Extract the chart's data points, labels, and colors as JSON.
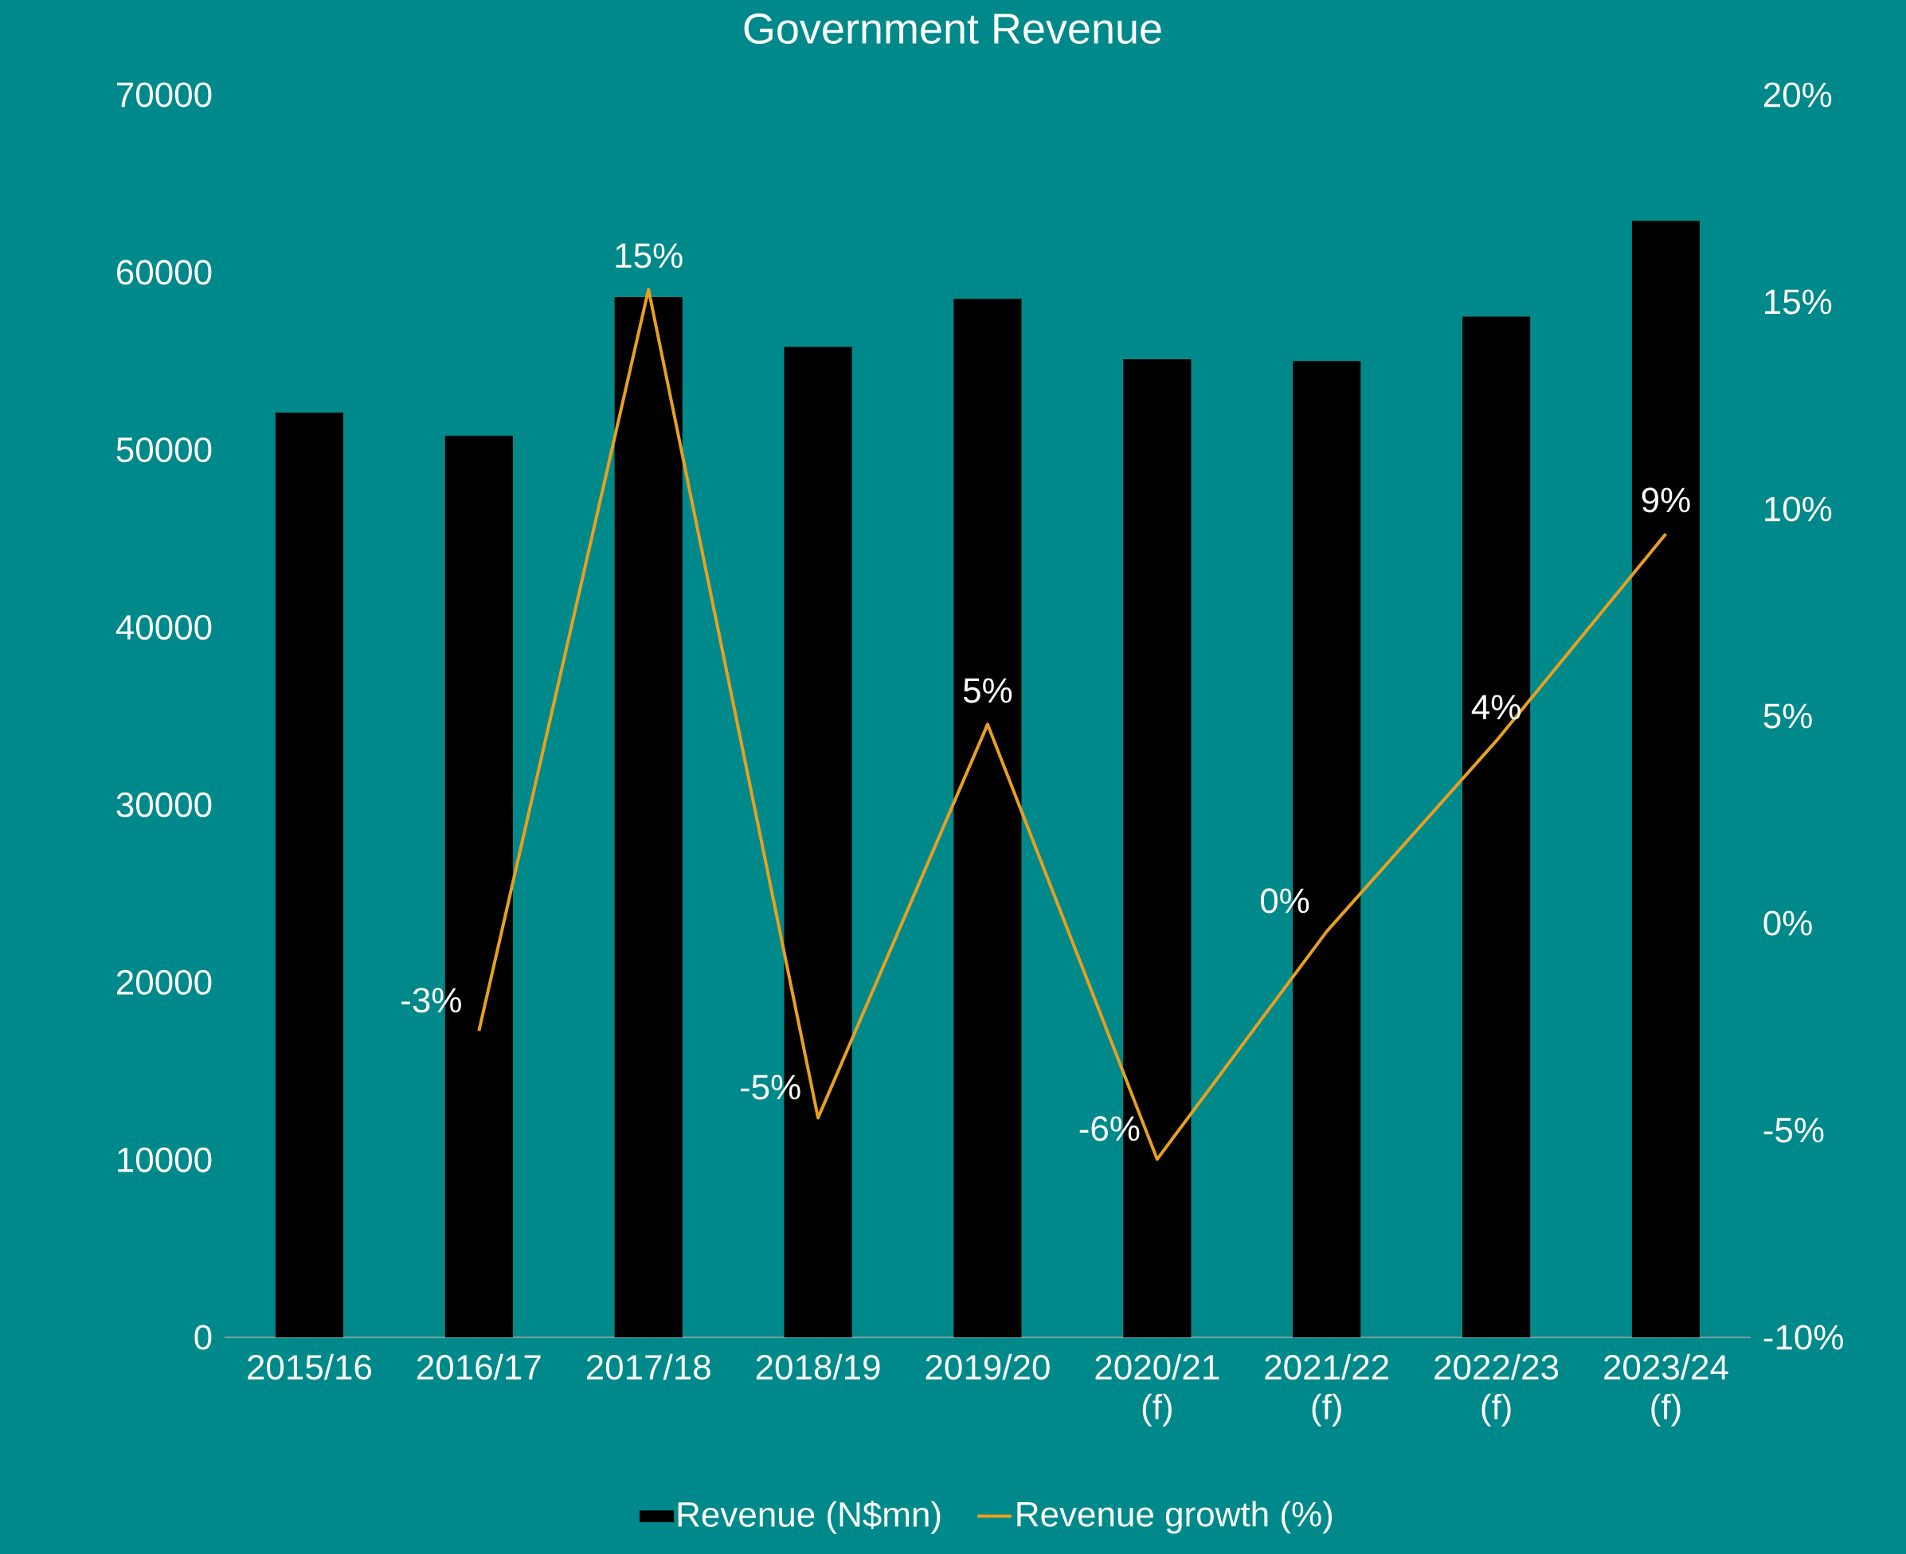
{
  "chart_data": {
    "type": "bar",
    "title": "Government Revenue",
    "categories": [
      "2015/16",
      "2016/17",
      "2017/18",
      "2018/19",
      "2019/20",
      "2020/21 (f)",
      "2021/22 (f)",
      "2022/23 (f)",
      "2023/24 (f)"
    ],
    "series": [
      {
        "name": "Revenue (N$mn)",
        "color": "#000000",
        "values": [
          52100,
          50800,
          58600,
          55800,
          58500,
          55100,
          55000,
          57500,
          62900
        ]
      },
      {
        "name": "Revenue growth (%)",
        "type": "line",
        "axis": "y2",
        "color": "#e8a020",
        "values": [
          null,
          -2.6,
          15.3,
          -4.7,
          4.8,
          -5.7,
          -0.2,
          4.4,
          9.4
        ],
        "value_labels": [
          null,
          "-3%",
          "15%",
          "-5%",
          "5%",
          "-6%",
          "0%",
          "4%",
          "9%"
        ]
      }
    ],
    "ylim": [
      0,
      70000
    ],
    "yticks": [
      0,
      10000,
      20000,
      30000,
      40000,
      50000,
      60000,
      70000
    ],
    "y2lim": [
      -10,
      20
    ],
    "y2ticks": [
      {
        "value": -10,
        "label": "-10%"
      },
      {
        "value": -5,
        "label": "-5%"
      },
      {
        "value": 0,
        "label": "0%"
      },
      {
        "value": 5,
        "label": "5%"
      },
      {
        "value": 10,
        "label": "10%"
      },
      {
        "value": 15,
        "label": "15%"
      },
      {
        "value": 20,
        "label": "20%"
      }
    ],
    "legend": "bottom"
  }
}
